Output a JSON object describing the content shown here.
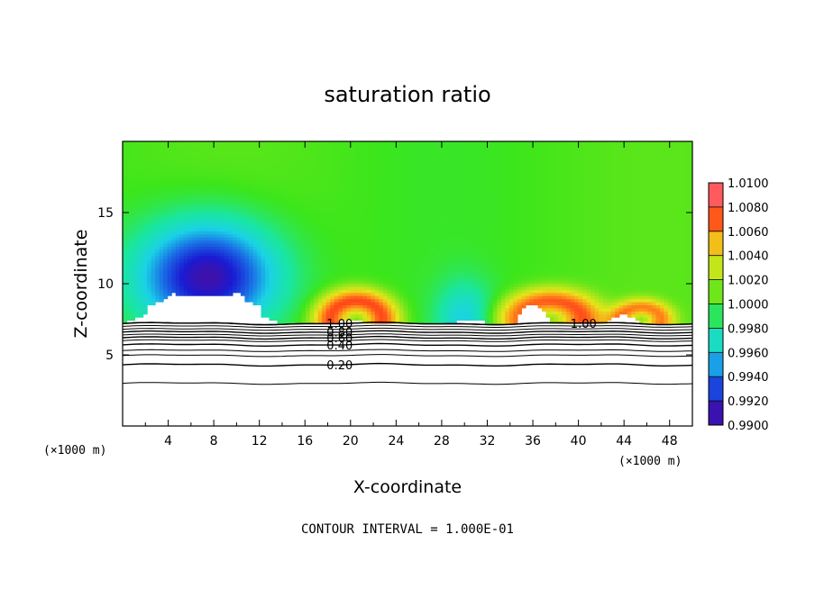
{
  "chart_data": {
    "type": "heatmap",
    "title": "saturation ratio",
    "xlabel": "X-coordinate",
    "ylabel": "Z-coordinate",
    "x_unit_left": "(×1000 m)",
    "x_unit_right": "(×1000 m)",
    "footer": "CONTOUR INTERVAL = 1.000E-01",
    "xlim": [
      0,
      50
    ],
    "ylim": [
      0,
      20
    ],
    "x_ticks": [
      4,
      8,
      12,
      16,
      20,
      24,
      28,
      32,
      36,
      40,
      44,
      48
    ],
    "x_tick_labels": [
      "4",
      "8",
      "12",
      "16",
      "20",
      "24",
      "28",
      "32",
      "36",
      "40",
      "44",
      "48"
    ],
    "y_ticks": [
      5,
      10,
      15
    ],
    "y_tick_labels": [
      "5",
      "10",
      "15"
    ],
    "colorbar": {
      "min": 0.99,
      "max": 1.01,
      "tick_values": [
        0.99,
        0.992,
        0.994,
        0.996,
        0.998,
        1.0,
        1.002,
        1.004,
        1.006,
        1.008,
        1.01
      ],
      "tick_labels": [
        "0.9900",
        "0.9920",
        "0.9940",
        "0.9960",
        "0.9980",
        "1.0000",
        "1.0020",
        "1.0040",
        "1.0060",
        "1.0080",
        "1.0100"
      ],
      "colors": [
        "#5a0a8c",
        "#1a1ad2",
        "#1a6ee6",
        "#1ad2e6",
        "#1ae6a0",
        "#3ce61a",
        "#a0e61a",
        "#e6e61a",
        "#ff961a",
        "#ff1a1a",
        "#ff9aa0"
      ]
    },
    "contour_lines": [
      {
        "level": 0.2,
        "label": "0.20",
        "z": 4.3,
        "label_x": 17.9
      },
      {
        "level": 0.4,
        "label": "0.40",
        "z": 5.7,
        "label_x": 17.9
      },
      {
        "level": 0.6,
        "label": "0.60",
        "z": 6.2,
        "label_x": 17.9
      },
      {
        "level": 0.8,
        "label": "0.80",
        "z": 6.6,
        "label_x": 17.9
      },
      {
        "level": 1.0,
        "label": "1.00",
        "z": 7.2,
        "label_x": 17.9
      },
      {
        "level": 1.0,
        "label": "1.00",
        "z": 7.2,
        "label_x": 39.3
      }
    ],
    "unlabeled_contour_z": [
      3.0,
      4.95,
      5.3,
      6.0,
      6.4,
      6.8,
      7.0
    ],
    "mountain_peaks": [
      {
        "x": 4.5,
        "z": 9.3
      },
      {
        "x": 7.0,
        "z": 8.8
      },
      {
        "x": 10.0,
        "z": 9.4
      },
      {
        "x": 20.0,
        "z": 7.4
      },
      {
        "x": 30.5,
        "z": 7.5
      },
      {
        "x": 36.0,
        "z": 8.6
      },
      {
        "x": 44.0,
        "z": 7.8
      }
    ],
    "features": [
      {
        "type": "dry",
        "x": 7.5,
        "z": 10.5,
        "half_width": 6.8,
        "height": 4.3,
        "value": 0.9905
      },
      {
        "type": "dry",
        "x": 30.0,
        "z": 7.5,
        "half_width": 2.8,
        "height": 3.0,
        "value": 0.9965
      },
      {
        "type": "moist",
        "x": 20.5,
        "z": 7.5,
        "half_width": 4.2,
        "height": 2.4,
        "value": 1.0075
      },
      {
        "type": "moist",
        "x": 37.5,
        "z": 7.5,
        "half_width": 5.2,
        "height": 2.4,
        "value": 1.007
      },
      {
        "type": "moist",
        "x": 45.5,
        "z": 7.5,
        "half_width": 3.2,
        "height": 1.6,
        "value": 1.006
      }
    ]
  }
}
